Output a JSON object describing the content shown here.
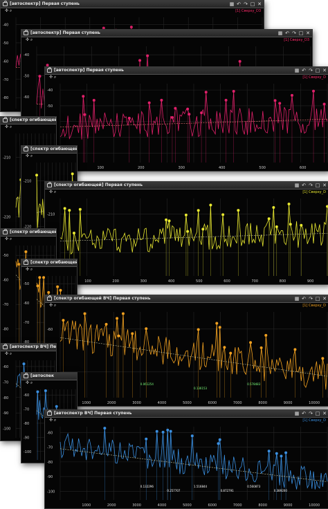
{
  "windows": [
    {
      "title": "[автоспектр] Первая ступень",
      "legend": "[1] Сверху_D3",
      "yticks": [
        "-40",
        "-50",
        "-60",
        "-70",
        "-80"
      ],
      "xticks": []
    },
    {
      "title": "[автоспектр] Первая ступень",
      "legend": "[1] Сверху_D3",
      "yticks": [
        "-40",
        "-50",
        "-60",
        "-70",
        "-80"
      ],
      "xticks": []
    },
    {
      "title": "[автоспектр] Первая ступень",
      "legend": "[1] Сверху_D",
      "yticks": [
        "-40",
        "-50",
        "-60",
        "-70",
        "-80"
      ],
      "xticks": [
        "100",
        "200",
        "300",
        "400",
        "500",
        "600"
      ]
    },
    {
      "title": "[спектр огибающей] Первая ступень",
      "legend": "",
      "yticks": [
        "-210",
        "-220"
      ],
      "xticks": []
    },
    {
      "title": "[спектр огибающей] Первая ступень",
      "legend": "[1] Сверху_D",
      "yticks": [
        "-210",
        "-220"
      ],
      "xticks": [
        "100",
        "200",
        "300",
        "400",
        "500",
        "600",
        "700",
        "800",
        "900"
      ]
    },
    {
      "title": "[спектр огибающей BЧ] Первая ступень",
      "legend": "",
      "yticks": [
        "-50",
        "-60",
        "-70",
        "-80"
      ],
      "xticks": []
    },
    {
      "title": "[спектр огибающей BЧ] Первая ступень",
      "legend": "",
      "yticks": [
        "-50",
        "-60",
        "-70",
        "-80"
      ],
      "xticks": []
    },
    {
      "title": "[спектр огибающей BЧ] Первая ступень",
      "legend": "[1] Сверху_D",
      "yticks": [
        "-60",
        "-70"
      ],
      "xticks": [
        "1000",
        "2000",
        "3000",
        "4000",
        "5000",
        "6000",
        "7000",
        "8000",
        "9000",
        "10000"
      ],
      "values": [
        "0.061254",
        "0.136153",
        "0.578483"
      ]
    },
    {
      "title": "[автоспектр ВЧ] Первая ступень",
      "legend": "",
      "yticks": [
        "-60",
        "-70",
        "-80",
        "-90",
        "-100"
      ],
      "xticks": []
    },
    {
      "title": "[автоспек",
      "legend": "",
      "yticks": [
        "-60",
        "-70",
        "-80",
        "-90",
        "-100"
      ],
      "xticks": []
    },
    {
      "title": "[автоспектр ВЧ] Первая ступень",
      "legend": "[1] Сверху_D",
      "yticks": [
        "-60",
        "-70",
        "-80",
        "-90",
        "-100"
      ],
      "xticks": [
        "1000",
        "2000",
        "3000",
        "4000",
        "5000",
        "6000",
        "7000",
        "8000",
        "9000",
        "10000"
      ],
      "values": [
        "0.132296",
        "0.257707",
        "1.516844",
        "0.872791",
        "0.560873",
        "0.389200"
      ]
    }
  ],
  "colors": {
    "magenta": "#e0206a",
    "yellow": "#e8e830",
    "orange": "#f0a020",
    "blue": "#3a8fe0",
    "grid": "#262626"
  },
  "icons": {
    "lock": "lock-icon",
    "undo": "undo-icon",
    "redo": "redo-icon",
    "maximize": "maximize-icon",
    "close": "close-icon",
    "cursor": "cursor-icon"
  }
}
